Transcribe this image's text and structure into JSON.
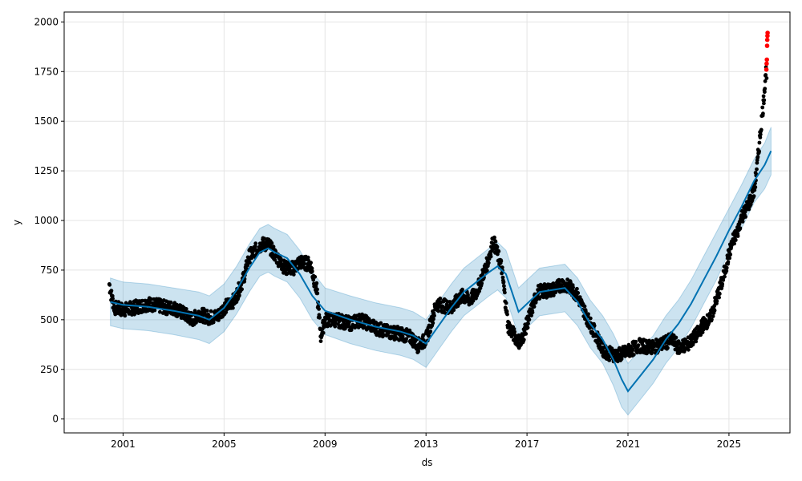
{
  "chart_data": {
    "type": "line",
    "title": "",
    "xlabel": "ds",
    "ylabel": "y",
    "x_ticks": [
      "2001",
      "2005",
      "2009",
      "2013",
      "2017",
      "2021",
      "2025"
    ],
    "y_ticks": [
      "0",
      "250",
      "500",
      "750",
      "1000",
      "1250",
      "1500",
      "1750",
      "2000"
    ],
    "xlim": [
      "1998-09-01",
      "2027-06-01"
    ],
    "ylim": [
      -70,
      2050
    ],
    "grid": true,
    "legend": "none",
    "colors": {
      "forecast": "#0072B2",
      "interval": "#0072B2",
      "observed": "#000000",
      "outlier": "#FF0000"
    },
    "series": [
      {
        "name": "yhat",
        "kind": "line",
        "x": [
          "2000-07-01",
          "2001-01-01",
          "2002-01-01",
          "2003-01-01",
          "2004-01-01",
          "2004-06-01",
          "2005-01-01",
          "2005-07-01",
          "2006-01-01",
          "2006-06-01",
          "2006-10-01",
          "2007-01-01",
          "2007-07-01",
          "2008-01-01",
          "2008-07-01",
          "2009-01-01",
          "2010-01-01",
          "2011-01-01",
          "2012-01-01",
          "2012-07-01",
          "2013-01-01",
          "2013-07-01",
          "2014-01-01",
          "2014-07-01",
          "2015-01-01",
          "2015-07-01",
          "2015-11-01",
          "2016-03-01",
          "2016-09-01",
          "2017-01-01",
          "2017-07-01",
          "2018-01-01",
          "2018-07-01",
          "2019-01-01",
          "2019-07-01",
          "2020-01-01",
          "2020-06-01",
          "2020-10-01",
          "2021-01-01",
          "2021-07-01",
          "2022-01-01",
          "2022-07-01",
          "2023-01-01",
          "2023-07-01",
          "2024-01-01",
          "2024-07-01",
          "2025-01-01",
          "2025-07-01",
          "2026-01-01",
          "2026-06-01",
          "2026-09-01"
        ],
        "y": [
          590,
          575,
          565,
          545,
          520,
          500,
          560,
          650,
          760,
          840,
          860,
          840,
          810,
          730,
          620,
          545,
          500,
          465,
          440,
          420,
          380,
          470,
          560,
          640,
          690,
          740,
          770,
          730,
          540,
          580,
          640,
          650,
          660,
          590,
          480,
          400,
          300,
          200,
          140,
          220,
          300,
          400,
          480,
          580,
          700,
          820,
          950,
          1070,
          1200,
          1280,
          1350
        ]
      },
      {
        "name": "yhat_upper",
        "kind": "band",
        "x": [
          "2000-07-01",
          "2001-01-01",
          "2002-01-01",
          "2003-01-01",
          "2004-01-01",
          "2004-06-01",
          "2005-01-01",
          "2005-07-01",
          "2006-01-01",
          "2006-06-01",
          "2006-10-01",
          "2007-01-01",
          "2007-07-01",
          "2008-01-01",
          "2008-07-01",
          "2009-01-01",
          "2010-01-01",
          "2011-01-01",
          "2012-01-01",
          "2012-07-01",
          "2013-01-01",
          "2013-07-01",
          "2014-01-01",
          "2014-07-01",
          "2015-01-01",
          "2015-07-01",
          "2015-11-01",
          "2016-03-01",
          "2016-09-01",
          "2017-01-01",
          "2017-07-01",
          "2018-01-01",
          "2018-07-01",
          "2019-01-01",
          "2019-07-01",
          "2020-01-01",
          "2020-06-01",
          "2020-10-01",
          "2021-01-01",
          "2021-07-01",
          "2022-01-01",
          "2022-07-01",
          "2023-01-01",
          "2023-07-01",
          "2024-01-01",
          "2024-07-01",
          "2025-01-01",
          "2025-07-01",
          "2026-01-01",
          "2026-06-01",
          "2026-09-01"
        ],
        "y": [
          710,
          690,
          680,
          660,
          640,
          620,
          680,
          770,
          880,
          960,
          980,
          960,
          930,
          850,
          740,
          660,
          620,
          585,
          560,
          540,
          500,
          590,
          680,
          760,
          810,
          860,
          890,
          850,
          660,
          700,
          760,
          770,
          780,
          710,
          600,
          520,
          430,
          340,
          280,
          350,
          420,
          520,
          600,
          700,
          820,
          940,
          1060,
          1180,
          1310,
          1390,
          1470
        ]
      },
      {
        "name": "yhat_lower",
        "kind": "band",
        "x": [
          "2000-07-01",
          "2001-01-01",
          "2002-01-01",
          "2003-01-01",
          "2004-01-01",
          "2004-06-01",
          "2005-01-01",
          "2005-07-01",
          "2006-01-01",
          "2006-06-01",
          "2006-10-01",
          "2007-01-01",
          "2007-07-01",
          "2008-01-01",
          "2008-07-01",
          "2009-01-01",
          "2010-01-01",
          "2011-01-01",
          "2012-01-01",
          "2012-07-01",
          "2013-01-01",
          "2013-07-01",
          "2014-01-01",
          "2014-07-01",
          "2015-01-01",
          "2015-07-01",
          "2015-11-01",
          "2016-03-01",
          "2016-09-01",
          "2017-01-01",
          "2017-07-01",
          "2018-01-01",
          "2018-07-01",
          "2019-01-01",
          "2019-07-01",
          "2020-01-01",
          "2020-06-01",
          "2020-10-01",
          "2021-01-01",
          "2021-07-01",
          "2022-01-01",
          "2022-07-01",
          "2023-01-01",
          "2023-07-01",
          "2024-01-01",
          "2024-07-01",
          "2025-01-01",
          "2025-07-01",
          "2026-01-01",
          "2026-06-01",
          "2026-09-01"
        ],
        "y": [
          470,
          455,
          445,
          425,
          400,
          380,
          440,
          530,
          640,
          720,
          740,
          720,
          690,
          610,
          500,
          425,
          380,
          345,
          320,
          300,
          260,
          350,
          440,
          520,
          570,
          620,
          650,
          610,
          420,
          460,
          520,
          530,
          540,
          470,
          360,
          280,
          170,
          60,
          20,
          100,
          180,
          280,
          360,
          460,
          580,
          700,
          840,
          960,
          1090,
          1160,
          1230
        ]
      },
      {
        "name": "observed",
        "kind": "scatter",
        "x": [
          "2000-06-15",
          "2000-07-15",
          "2000-09-01",
          "2001-01-01",
          "2001-06-01",
          "2002-01-01",
          "2002-06-01",
          "2002-10-01",
          "2003-01-01",
          "2003-06-01",
          "2003-10-01",
          "2004-01-01",
          "2004-06-01",
          "2004-10-01",
          "2005-01-01",
          "2005-06-01",
          "2005-10-01",
          "2006-01-01",
          "2006-04-01",
          "2006-07-01",
          "2006-10-01",
          "2007-01-01",
          "2007-06-01",
          "2007-10-01",
          "2008-01-01",
          "2008-06-01",
          "2008-09-01",
          "2008-11-01",
          "2009-01-01",
          "2009-06-01",
          "2010-01-01",
          "2010-06-01",
          "2011-01-01",
          "2011-06-01",
          "2012-01-01",
          "2012-06-01",
          "2012-09-01",
          "2013-01-01",
          "2013-06-01",
          "2014-01-01",
          "2014-06-01",
          "2014-10-01",
          "2015-01-01",
          "2015-06-01",
          "2015-09-01",
          "2016-01-01",
          "2016-04-01",
          "2016-07-01",
          "2016-10-01",
          "2017-01-01",
          "2017-06-01",
          "2018-01-01",
          "2018-06-01",
          "2018-10-01",
          "2019-01-01",
          "2019-06-01",
          "2019-10-01",
          "2020-01-01",
          "2020-04-01",
          "2020-08-01",
          "2021-01-01",
          "2021-06-01",
          "2022-01-01",
          "2022-06-01",
          "2022-10-01",
          "2023-01-01",
          "2023-06-01",
          "2023-10-01",
          "2024-01-01",
          "2024-04-01",
          "2024-07-01",
          "2024-10-01",
          "2025-01-01",
          "2025-03-01",
          "2025-05-01",
          "2025-07-01",
          "2025-09-01",
          "2025-11-01",
          "2026-01-01",
          "2026-02-15",
          "2026-04-01",
          "2026-05-15",
          "2026-06-15"
        ],
        "y": [
          680,
          620,
          560,
          550,
          560,
          580,
          570,
          560,
          560,
          530,
          500,
          530,
          510,
          520,
          560,
          600,
          700,
          820,
          850,
          880,
          880,
          830,
          760,
          760,
          790,
          780,
          650,
          420,
          500,
          500,
          480,
          500,
          460,
          440,
          430,
          410,
          370,
          400,
          580,
          560,
          620,
          600,
          640,
          780,
          900,
          760,
          470,
          420,
          380,
          480,
          640,
          650,
          680,
          660,
          620,
          500,
          420,
          350,
          330,
          320,
          340,
          370,
          360,
          380,
          400,
          360,
          380,
          430,
          480,
          500,
          600,
          700,
          830,
          900,
          940,
          1020,
          1050,
          1100,
          1150,
          1280,
          1450,
          1600,
          1750
        ]
      },
      {
        "name": "outliers",
        "kind": "scatter",
        "x": [
          "2026-06-25",
          "2026-06-28",
          "2026-07-02",
          "2026-07-05",
          "2026-07-08",
          "2026-07-10",
          "2026-07-12"
        ],
        "y": [
          1760,
          1790,
          1810,
          1880,
          1910,
          1930,
          1945
        ]
      }
    ]
  }
}
